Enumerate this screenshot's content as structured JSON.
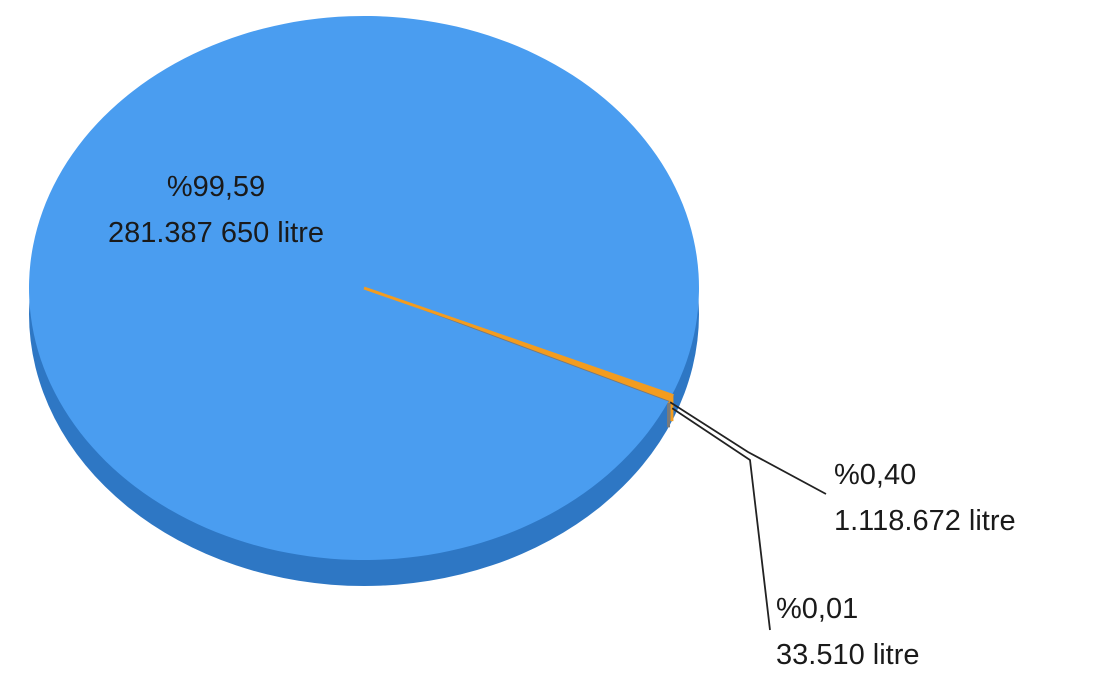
{
  "chart_data": {
    "type": "pie",
    "style": "3d",
    "title": "",
    "legend": false,
    "slices": [
      {
        "percent_label": "%99,59",
        "value_label": "281.387 650 litre",
        "percent": 99.59,
        "value": 281387650,
        "color": "#4a9df0"
      },
      {
        "percent_label": "%0,40",
        "value_label": "1.118.672 litre",
        "percent": 0.4,
        "value": 1118672,
        "color": "#f39c1f"
      },
      {
        "percent_label": "%0,01",
        "value_label": "33.510 litre",
        "percent": 0.01,
        "value": 33510,
        "color": "#7a7a7a"
      }
    ],
    "colors": {
      "slice_top": "#4a9df0",
      "slice_side": "#2e77c4",
      "leader_line": "#222222"
    }
  }
}
